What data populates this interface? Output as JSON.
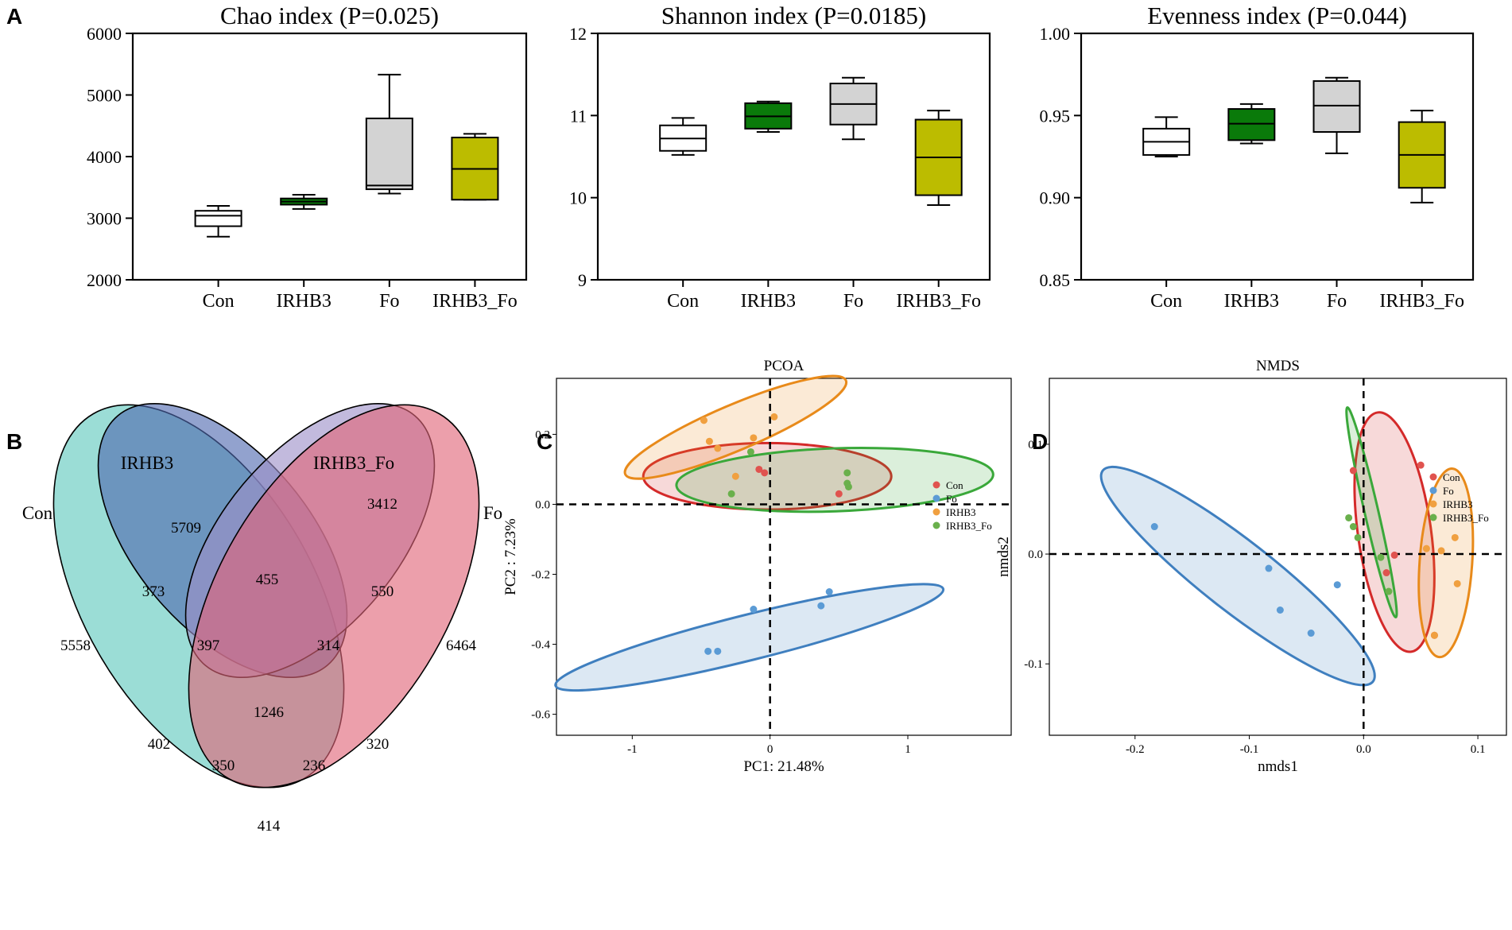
{
  "panel_letters": {
    "a": "A",
    "b": "B",
    "c": "C",
    "d": "D"
  },
  "colors": {
    "Con": "#ffffff",
    "IRHB3": "#0a7a0a",
    "Fo": "#d3d3d3",
    "IRHB3_Fo": "#bcbc00",
    "scatter_Con": "#e0534f",
    "scatter_Fo": "#5b9bd5",
    "scatter_IRHB3": "#f0a040",
    "scatter_IRHB3_Fo": "#6ab04c",
    "ellipse_Con": "#d42a2a",
    "ellipse_Fo": "#3f7fbf",
    "ellipse_IRHB3": "#e88a1a",
    "ellipse_IRHB3_Fo": "#3aa83a",
    "venn_Con": "#5ec8bd",
    "venn_IRHB3": "#4f69b0",
    "venn_IRHB3_Fo": "#9d8fc8",
    "venn_Fo": "#e06478"
  },
  "chart_data": [
    {
      "type": "box",
      "title": "Chao index (P=0.025)",
      "categories": [
        "Con",
        "IRHB3",
        "Fo",
        "IRHB3_Fo"
      ],
      "ylim": [
        2000,
        6000
      ],
      "yticks": [
        2000,
        3000,
        4000,
        5000,
        6000
      ],
      "ytick_labels": [
        "2000",
        "3000",
        "4000",
        "5000",
        "6000"
      ],
      "boxes": [
        {
          "min": 2700,
          "q1": 2870,
          "median": 3040,
          "q3": 3120,
          "max": 3200
        },
        {
          "min": 3150,
          "q1": 3220,
          "median": 3270,
          "q3": 3320,
          "max": 3380
        },
        {
          "min": 3400,
          "q1": 3470,
          "median": 3530,
          "q3": 4620,
          "max": 5330
        },
        {
          "min": 3300,
          "q1": 3300,
          "median": 3800,
          "q3": 4310,
          "max": 4370
        }
      ]
    },
    {
      "type": "box",
      "title": "Shannon index (P=0.0185)",
      "categories": [
        "Con",
        "IRHB3",
        "Fo",
        "IRHB3_Fo"
      ],
      "ylim": [
        9,
        12
      ],
      "yticks": [
        9,
        10,
        11,
        12
      ],
      "ytick_labels": [
        "9",
        "10",
        "11",
        "12"
      ],
      "boxes": [
        {
          "min": 10.52,
          "q1": 10.57,
          "median": 10.72,
          "q3": 10.88,
          "max": 10.97
        },
        {
          "min": 10.8,
          "q1": 10.84,
          "median": 10.99,
          "q3": 11.15,
          "max": 11.17
        },
        {
          "min": 10.71,
          "q1": 10.89,
          "median": 11.14,
          "q3": 11.39,
          "max": 11.46
        },
        {
          "min": 9.91,
          "q1": 10.03,
          "median": 10.49,
          "q3": 10.95,
          "max": 11.06
        }
      ]
    },
    {
      "type": "box",
      "title": "Evenness index (P=0.044)",
      "categories": [
        "Con",
        "IRHB3",
        "Fo",
        "IRHB3_Fo"
      ],
      "ylim": [
        0.85,
        1.0
      ],
      "yticks": [
        0.85,
        0.9,
        0.95,
        1.0
      ],
      "ytick_labels": [
        "0.85",
        "0.90",
        "0.95",
        "1.00"
      ],
      "boxes": [
        {
          "min": 0.925,
          "q1": 0.926,
          "median": 0.934,
          "q3": 0.942,
          "max": 0.949
        },
        {
          "min": 0.933,
          "q1": 0.935,
          "median": 0.945,
          "q3": 0.954,
          "max": 0.957
        },
        {
          "min": 0.927,
          "q1": 0.94,
          "median": 0.956,
          "q3": 0.971,
          "max": 0.973
        },
        {
          "min": 0.897,
          "q1": 0.906,
          "median": 0.926,
          "q3": 0.946,
          "max": 0.953
        }
      ]
    },
    {
      "type": "venn",
      "sets": [
        "Con",
        "IRHB3",
        "IRHB3_Fo",
        "Fo"
      ],
      "regions": [
        {
          "sets": [
            "Con"
          ],
          "value": "5558"
        },
        {
          "sets": [
            "IRHB3"
          ],
          "value": "5709"
        },
        {
          "sets": [
            "IRHB3_Fo"
          ],
          "value": "3412"
        },
        {
          "sets": [
            "Fo"
          ],
          "value": "6464"
        },
        {
          "sets": [
            "Con",
            "IRHB3"
          ],
          "value": "373"
        },
        {
          "sets": [
            "IRHB3",
            "IRHB3_Fo"
          ],
          "value": "455"
        },
        {
          "sets": [
            "IRHB3_Fo",
            "Fo"
          ],
          "value": "550"
        },
        {
          "sets": [
            "Con",
            "IRHB3",
            "IRHB3_Fo"
          ],
          "value": "397"
        },
        {
          "sets": [
            "IRHB3",
            "IRHB3_Fo",
            "Fo"
          ],
          "value": "314"
        },
        {
          "sets": [
            "Con",
            "IRHB3",
            "IRHB3_Fo",
            "Fo"
          ],
          "value": "1246"
        },
        {
          "sets": [
            "Con",
            "IRHB3_Fo"
          ],
          "value": "402"
        },
        {
          "sets": [
            "IRHB3",
            "Fo"
          ],
          "value": "320"
        },
        {
          "sets": [
            "Con",
            "IRHB3_Fo",
            "Fo"
          ],
          "value": "350"
        },
        {
          "sets": [
            "Con",
            "IRHB3",
            "Fo"
          ],
          "value": "236"
        },
        {
          "sets": [
            "Con",
            "Fo"
          ],
          "value": "414"
        }
      ]
    },
    {
      "type": "scatter",
      "title": "PCOA",
      "xlabel": "PC1: 21.48%",
      "ylabel": "PC2 :  7.23%",
      "xlim": [
        -1.55,
        1.75
      ],
      "ylim": [
        -0.66,
        0.36
      ],
      "xticks": [
        -1,
        0,
        1
      ],
      "xtick_labels": [
        "-1",
        "0",
        "1"
      ],
      "yticks": [
        -0.6,
        -0.4,
        -0.2,
        0.0,
        0.2
      ],
      "ytick_labels": [
        "-0.6",
        "-0.4",
        "-0.2",
        "0.0",
        "0.2"
      ],
      "legend": [
        "Con",
        "Fo",
        "IRHB3",
        "IRHB3_Fo"
      ],
      "series": [
        {
          "name": "Con",
          "points": [
            [
              -0.08,
              0.1
            ],
            [
              -0.04,
              0.09
            ],
            [
              0.5,
              0.03
            ]
          ]
        },
        {
          "name": "Fo",
          "points": [
            [
              -0.45,
              -0.42
            ],
            [
              -0.38,
              -0.42
            ],
            [
              -0.12,
              -0.3
            ],
            [
              0.37,
              -0.29
            ],
            [
              0.43,
              -0.25
            ]
          ]
        },
        {
          "name": "IRHB3",
          "points": [
            [
              -0.48,
              0.24
            ],
            [
              0.03,
              0.25
            ],
            [
              -0.44,
              0.18
            ],
            [
              -0.38,
              0.16
            ],
            [
              -0.12,
              0.19
            ],
            [
              -0.25,
              0.08
            ]
          ]
        },
        {
          "name": "IRHB3_Fo",
          "points": [
            [
              -0.14,
              0.15
            ],
            [
              0.56,
              0.09
            ],
            [
              0.56,
              0.06
            ],
            [
              0.57,
              0.05
            ],
            [
              -0.28,
              0.03
            ]
          ]
        }
      ],
      "ellipses": [
        {
          "name": "Con",
          "cx": -0.02,
          "cy": 0.08,
          "rx": 0.9,
          "ry": 0.095,
          "angle": 0
        },
        {
          "name": "IRHB3_Fo",
          "cx": 0.47,
          "cy": 0.07,
          "rx": 1.15,
          "ry": 0.09,
          "angle": -2
        },
        {
          "name": "IRHB3",
          "cx": -0.25,
          "cy": 0.22,
          "rx": 0.87,
          "ry": 0.065,
          "angle": -23
        },
        {
          "name": "Fo",
          "cx": -0.15,
          "cy": -0.38,
          "rx": 1.45,
          "ry": 0.065,
          "angle": -14
        }
      ]
    },
    {
      "type": "scatter",
      "title": "NMDS",
      "xlabel": "nmds1",
      "ylabel": "nmds2",
      "xlim": [
        -0.275,
        0.125
      ],
      "ylim": [
        -0.165,
        0.16
      ],
      "xticks": [
        -0.2,
        -0.1,
        0.0,
        0.1
      ],
      "xtick_labels": [
        "-0.2",
        "-0.1",
        "0.0",
        "0.1"
      ],
      "yticks": [
        -0.1,
        0.0,
        0.1
      ],
      "ytick_labels": [
        "-0.1",
        "0.0",
        "0.1"
      ],
      "legend": [
        "Con",
        "Fo",
        "IRHB3",
        "IRHB3_Fo"
      ],
      "series": [
        {
          "name": "Con",
          "points": [
            [
              -0.009,
              0.076
            ],
            [
              0.05,
              0.081
            ],
            [
              0.027,
              -0.001
            ],
            [
              0.02,
              -0.017
            ],
            [
              0.062,
              -0.074
            ]
          ]
        },
        {
          "name": "Fo",
          "points": [
            [
              -0.183,
              0.025
            ],
            [
              -0.083,
              -0.013
            ],
            [
              -0.073,
              -0.051
            ],
            [
              -0.023,
              -0.028
            ],
            [
              -0.046,
              -0.072
            ]
          ]
        },
        {
          "name": "IRHB3",
          "points": [
            [
              0.055,
              0.005
            ],
            [
              0.068,
              0.003
            ],
            [
              0.08,
              0.015
            ],
            [
              0.082,
              -0.027
            ],
            [
              0.062,
              -0.074
            ]
          ]
        },
        {
          "name": "IRHB3_Fo",
          "points": [
            [
              -0.013,
              0.033
            ],
            [
              -0.009,
              0.025
            ],
            [
              -0.005,
              0.015
            ],
            [
              0.022,
              -0.034
            ],
            [
              0.015,
              -0.003
            ]
          ]
        }
      ],
      "ellipses": [
        {
          "name": "Fo",
          "cx": -0.11,
          "cy": -0.02,
          "rx": 0.15,
          "ry": 0.032,
          "angle": 38
        },
        {
          "name": "Con",
          "cx": 0.027,
          "cy": 0.02,
          "rx": 0.032,
          "ry": 0.11,
          "angle": -8
        },
        {
          "name": "IRHB3",
          "cx": 0.072,
          "cy": -0.008,
          "rx": 0.023,
          "ry": 0.086,
          "angle": 4
        },
        {
          "name": "IRHB3_Fo",
          "cx": 0.007,
          "cy": 0.038,
          "rx": 0.006,
          "ry": 0.098,
          "angle": -13
        }
      ]
    }
  ]
}
